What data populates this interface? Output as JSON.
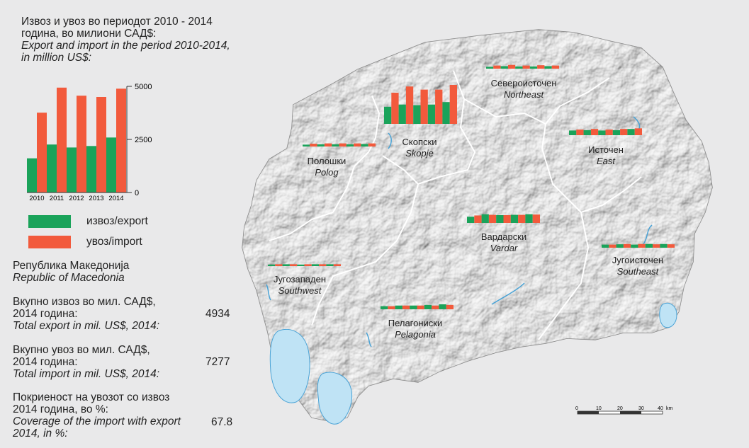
{
  "title": {
    "mk_line1": "Извоз и увоз во периодот 2010 - 2014",
    "mk_line2": "година, во милиони САД$:",
    "en_line1": "Export and import in the period 2010-2014,",
    "en_line2": "in million US$:"
  },
  "colors": {
    "export": "#1aa35a",
    "import": "#f25a3c"
  },
  "chart_data": {
    "type": "bar",
    "categories": [
      "2010",
      "2011",
      "2012",
      "2013",
      "2014"
    ],
    "series": [
      {
        "name": "извоз/export",
        "values": [
          1610,
          2260,
          2120,
          2190,
          2590
        ]
      },
      {
        "name": "увоз/import",
        "values": [
          3760,
          4940,
          4560,
          4500,
          4890
        ]
      }
    ],
    "yticks": [
      "5000",
      "2500",
      "0"
    ],
    "ylim": [
      0,
      5000
    ]
  },
  "legend": {
    "export_label": "извоз/export",
    "import_label": "увоз/import"
  },
  "country": {
    "mk": "Република Македонија",
    "en": "Republic of Macedonia"
  },
  "stats": {
    "export": {
      "mk1": "Вкупно извоз во мил. САД$,",
      "mk2": "2014 година:",
      "en": "Total export in mil. US$, 2014:",
      "value": "4934"
    },
    "import": {
      "mk1": "Вкупно увоз во мил. САД$,",
      "mk2": "2014 година:",
      "en": "Total import in mil. US$, 2014:",
      "value": "7277"
    },
    "coverage": {
      "mk1": "Покриеност на увозот со извоз",
      "mk2": "2014 година, во %:",
      "en1": "Coverage of the import with export",
      "en2": "2014, in %:",
      "value": "67.8"
    }
  },
  "regions": [
    {
      "mk": "Скопски",
      "en": "Skopje",
      "exp": [
        0.55,
        0.62,
        0.6,
        0.62,
        0.7
      ],
      "imp": [
        1.0,
        1.2,
        1.1,
        1.1,
        1.25
      ]
    },
    {
      "mk": "Североисточен",
      "en": "Northeast",
      "exp": [
        0.06,
        0.08,
        0.07,
        0.07,
        0.08
      ],
      "imp": [
        0.1,
        0.12,
        0.1,
        0.11,
        0.1
      ]
    },
    {
      "mk": "Полошки",
      "en": "Polog",
      "exp": [
        0.06,
        0.07,
        0.07,
        0.07,
        0.08
      ],
      "imp": [
        0.09,
        0.1,
        0.1,
        0.1,
        0.1
      ]
    },
    {
      "mk": "Источен",
      "en": "East",
      "exp": [
        0.15,
        0.16,
        0.15,
        0.16,
        0.2
      ],
      "imp": [
        0.18,
        0.2,
        0.18,
        0.2,
        0.22
      ]
    },
    {
      "mk": "Вардарски",
      "en": "Vardar",
      "exp": [
        0.2,
        0.28,
        0.25,
        0.26,
        0.28
      ],
      "imp": [
        0.24,
        0.26,
        0.25,
        0.26,
        0.27
      ]
    },
    {
      "mk": "Југоисточен",
      "en": "Southeast",
      "exp": [
        0.1,
        0.11,
        0.1,
        0.12,
        0.12
      ],
      "imp": [
        0.1,
        0.12,
        0.12,
        0.11,
        0.11
      ]
    },
    {
      "mk": "Југозападен",
      "en": "Southwest",
      "exp": [
        0.05,
        0.06,
        0.05,
        0.06,
        0.06
      ],
      "imp": [
        0.06,
        0.06,
        0.06,
        0.06,
        0.06
      ]
    },
    {
      "mk": "Пелагониски",
      "en": "Pelagonia",
      "exp": [
        0.1,
        0.12,
        0.12,
        0.14,
        0.16
      ],
      "imp": [
        0.1,
        0.12,
        0.12,
        0.12,
        0.14
      ]
    }
  ],
  "scale": {
    "ticks": [
      "0",
      "10",
      "20",
      "30",
      "40"
    ],
    "unit": "km"
  }
}
